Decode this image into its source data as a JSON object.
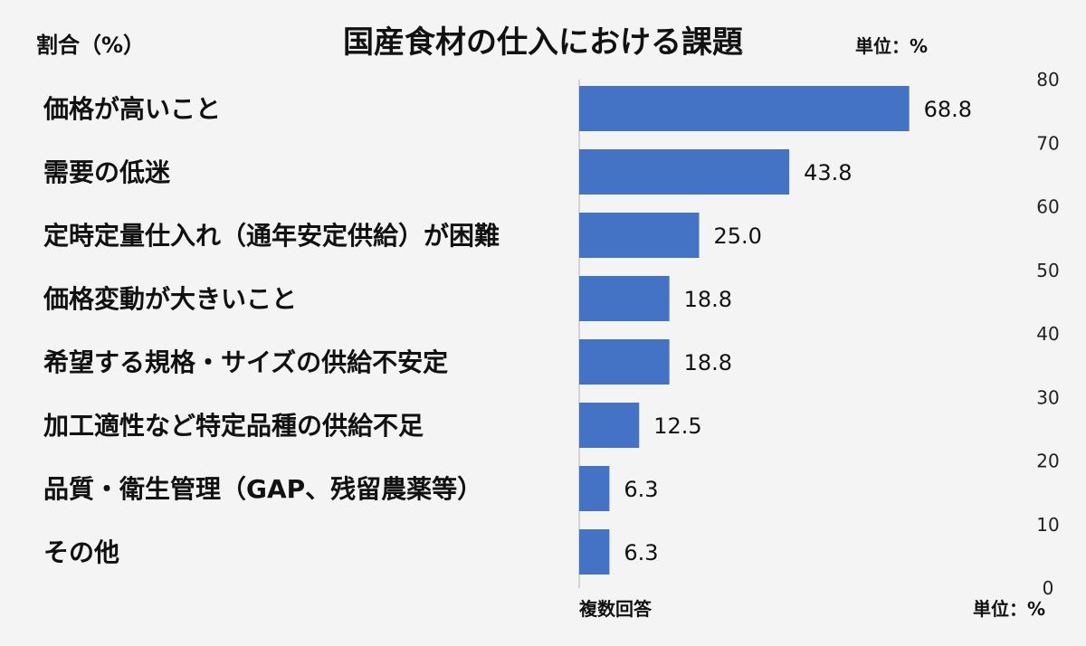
{
  "chart_data": {
    "type": "bar",
    "orientation": "horizontal",
    "title": "国産食材の仕入における課題",
    "ylabel": "割合（%）",
    "unit_top": "単位：%",
    "unit_bottom": "単位：%",
    "note": "複数回答",
    "categories": [
      "価格が高いこと",
      "需要の低迷",
      "定時定量仕入れ（通年安定供給）が困難",
      "価格変動が大きいこと",
      "希望する規格・サイズの供給不安定",
      "加工適性など特定品種の供給不足",
      "品質・衛生管理（GAP、残留農薬等）",
      "その他"
    ],
    "values": [
      68.8,
      43.8,
      25.0,
      18.8,
      18.8,
      12.5,
      6.3,
      6.3
    ],
    "value_labels": [
      "68.8",
      "43.8",
      "25.0",
      "18.8",
      "18.8",
      "12.5",
      "6.3",
      "6.3"
    ],
    "axis_ticks": [
      "80",
      "70",
      "60",
      "50",
      "40",
      "30",
      "20",
      "10",
      "0"
    ],
    "xlim": [
      0,
      80
    ],
    "bar_color": "#4472c4",
    "grid": false
  }
}
